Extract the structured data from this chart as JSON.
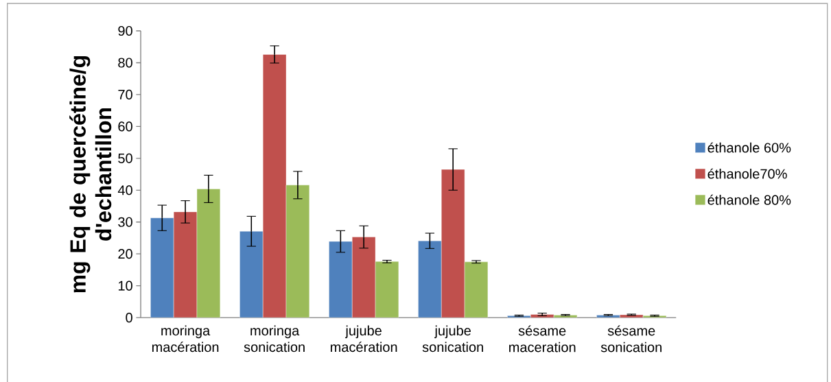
{
  "chart_data": {
    "type": "bar",
    "ylabel": "mg  Eq de quercétine/g d'echantillon",
    "categories": [
      "moringa macération",
      "moringa sonication",
      "jujube macération",
      "jujube sonication",
      "sésame maceration",
      "sésame sonication"
    ],
    "series": [
      {
        "name": "éthanole 60%",
        "color": "#4f81bd",
        "values": [
          31.3,
          27.1,
          23.9,
          24.1,
          0.6,
          0.8
        ],
        "errors": [
          4,
          4.7,
          3.4,
          2.4,
          0.2,
          0.2
        ]
      },
      {
        "name": "éthanole70%",
        "color": "#c0504d",
        "values": [
          33.2,
          82.6,
          25.3,
          46.5,
          1.0,
          0.9
        ],
        "errors": [
          3.5,
          2.7,
          3.5,
          6.5,
          0.4,
          0.2
        ]
      },
      {
        "name": "éthanole 80%",
        "color": "#9bbb59",
        "values": [
          40.4,
          41.6,
          17.6,
          17.5,
          0.8,
          0.6
        ],
        "errors": [
          4.3,
          4.3,
          0.4,
          0.4,
          0.2,
          0.2
        ]
      }
    ],
    "ylim": [
      0,
      90
    ],
    "yticks": [
      0,
      10,
      20,
      30,
      40,
      50,
      60,
      70,
      80,
      90
    ],
    "legend": "right"
  }
}
